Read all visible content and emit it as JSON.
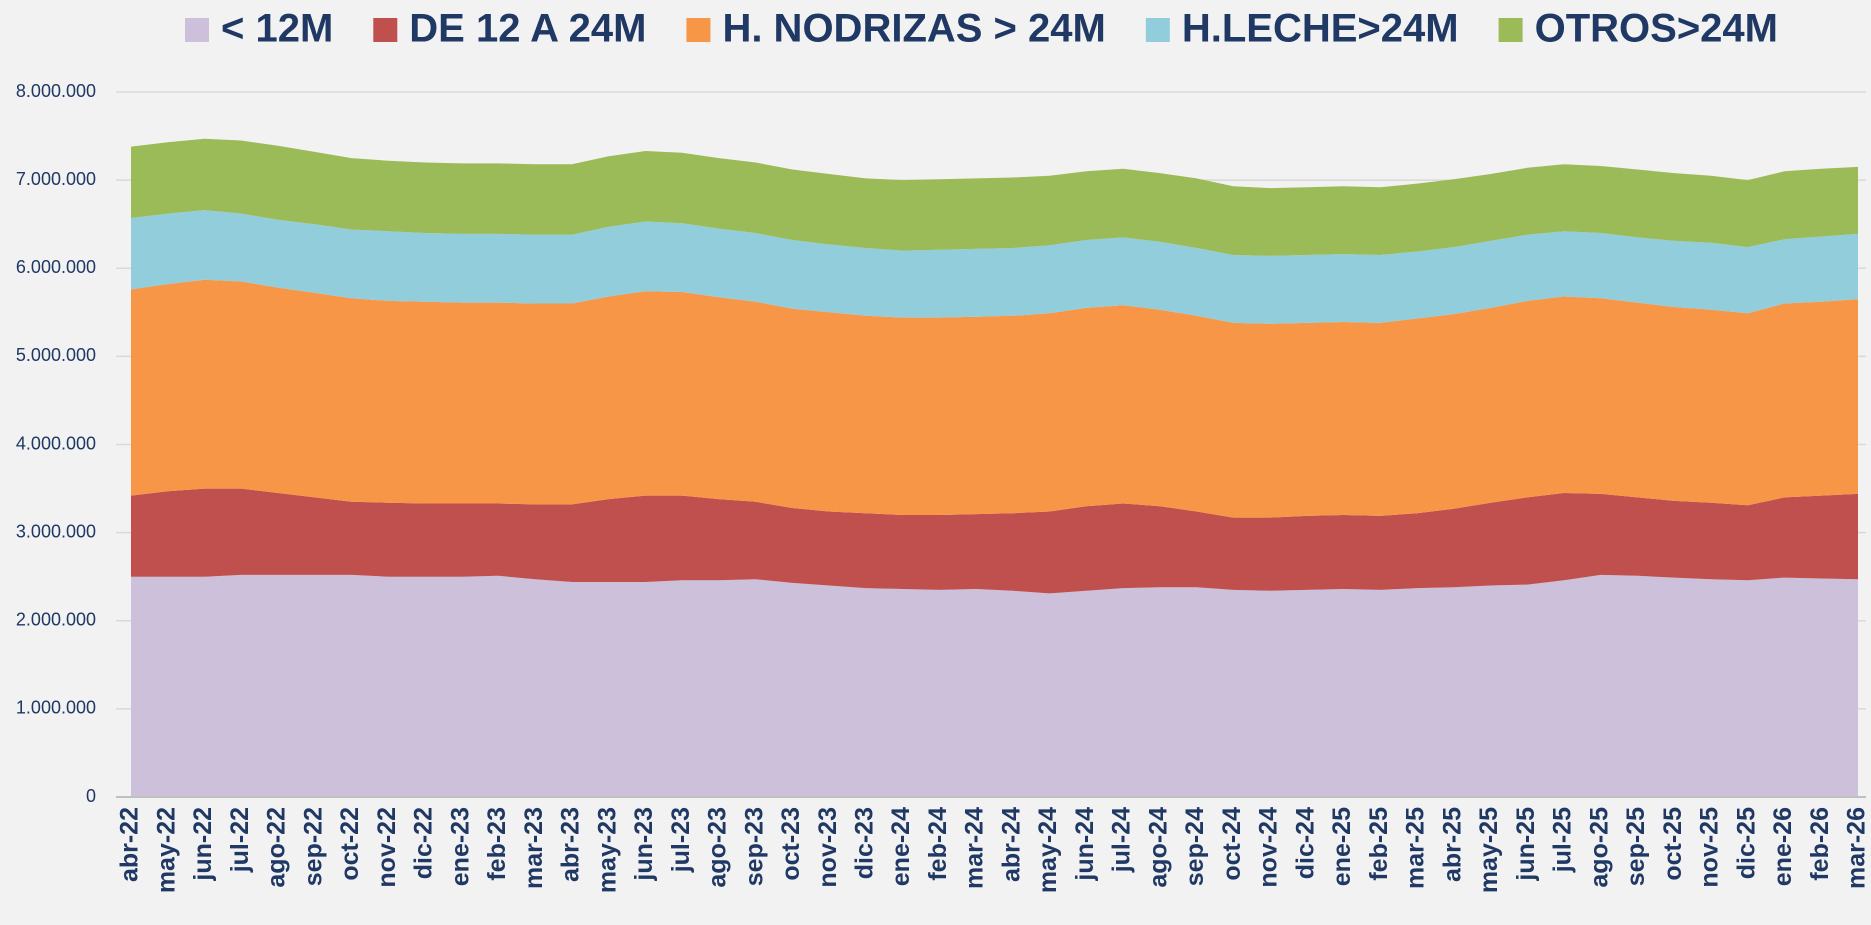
{
  "chart_data": {
    "type": "stacked_area",
    "categories": [
      "abr-22",
      "may-22",
      "jun-22",
      "jul-22",
      "ago-22",
      "sep-22",
      "oct-22",
      "nov-22",
      "dic-22",
      "ene-23",
      "feb-23",
      "mar-23",
      "abr-23",
      "may-23",
      "jun-23",
      "jul-23",
      "ago-23",
      "sep-23",
      "oct-23",
      "nov-23",
      "dic-23",
      "ene-24",
      "feb-24",
      "mar-24",
      "abr-24",
      "may-24",
      "jun-24",
      "jul-24",
      "ago-24",
      "sep-24",
      "oct-24",
      "nov-24",
      "dic-24",
      "ene-25",
      "feb-25",
      "mar-25",
      "abr-25",
      "may-25",
      "jun-25",
      "jul-25",
      "ago-25",
      "sep-25",
      "oct-25",
      "nov-25",
      "dic-25",
      "ene-26",
      "feb-26",
      "mar-26"
    ],
    "series": [
      {
        "name": "< 12M",
        "color": "#ccc0da",
        "values": [
          2500000,
          2500000,
          2500000,
          2520000,
          2520000,
          2520000,
          2520000,
          2500000,
          2500000,
          2500000,
          2510000,
          2470000,
          2440000,
          2440000,
          2440000,
          2460000,
          2460000,
          2470000,
          2430000,
          2400000,
          2370000,
          2360000,
          2350000,
          2360000,
          2340000,
          2310000,
          2340000,
          2370000,
          2380000,
          2380000,
          2350000,
          2340000,
          2350000,
          2360000,
          2350000,
          2370000,
          2380000,
          2400000,
          2410000,
          2460000,
          2520000,
          2510000,
          2490000,
          2470000,
          2460000,
          2490000,
          2480000,
          2470000
        ]
      },
      {
        "name": "DE 12 A 24M",
        "color": "#c0504d",
        "values": [
          920000,
          970000,
          1000000,
          980000,
          930000,
          880000,
          830000,
          840000,
          830000,
          830000,
          820000,
          850000,
          880000,
          940000,
          980000,
          960000,
          920000,
          880000,
          850000,
          840000,
          850000,
          840000,
          850000,
          850000,
          880000,
          930000,
          960000,
          960000,
          920000,
          860000,
          820000,
          830000,
          840000,
          840000,
          840000,
          850000,
          890000,
          940000,
          990000,
          990000,
          920000,
          890000,
          870000,
          870000,
          850000,
          910000,
          940000,
          970000
        ]
      },
      {
        "name": "H. NODRIZAS > 24M",
        "color": "#f79646",
        "values": [
          2340000,
          2350000,
          2370000,
          2350000,
          2330000,
          2320000,
          2310000,
          2290000,
          2290000,
          2280000,
          2280000,
          2280000,
          2280000,
          2300000,
          2320000,
          2310000,
          2290000,
          2270000,
          2260000,
          2260000,
          2240000,
          2240000,
          2240000,
          2240000,
          2240000,
          2250000,
          2250000,
          2250000,
          2230000,
          2220000,
          2210000,
          2200000,
          2190000,
          2190000,
          2190000,
          2210000,
          2210000,
          2210000,
          2230000,
          2230000,
          2220000,
          2210000,
          2200000,
          2190000,
          2180000,
          2200000,
          2200000,
          2210000
        ]
      },
      {
        "name": "H.LECHE>24M",
        "color": "#92cddc",
        "values": [
          810000,
          800000,
          790000,
          770000,
          770000,
          780000,
          780000,
          790000,
          780000,
          780000,
          780000,
          780000,
          780000,
          790000,
          790000,
          780000,
          780000,
          780000,
          780000,
          770000,
          770000,
          760000,
          770000,
          770000,
          770000,
          770000,
          770000,
          770000,
          770000,
          770000,
          770000,
          770000,
          770000,
          770000,
          770000,
          760000,
          760000,
          760000,
          750000,
          740000,
          740000,
          740000,
          750000,
          760000,
          750000,
          730000,
          740000,
          740000
        ]
      },
      {
        "name": "OTROS>24M",
        "color": "#9bbb59",
        "values": [
          810000,
          810000,
          810000,
          830000,
          840000,
          820000,
          810000,
          800000,
          800000,
          800000,
          800000,
          800000,
          800000,
          800000,
          800000,
          800000,
          800000,
          800000,
          800000,
          800000,
          790000,
          800000,
          800000,
          800000,
          800000,
          790000,
          780000,
          780000,
          780000,
          790000,
          780000,
          770000,
          770000,
          770000,
          770000,
          770000,
          770000,
          760000,
          760000,
          760000,
          760000,
          770000,
          770000,
          760000,
          760000,
          770000,
          770000,
          760000
        ]
      }
    ],
    "ylim": [
      0,
      8000000
    ],
    "yticks": [
      0,
      {
        "value": 1000000,
        "label": "1.000.000"
      },
      {
        "value": 2000000,
        "label": "2.000.000"
      },
      {
        "value": 3000000,
        "label": "3.000.000"
      },
      {
        "value": 4000000,
        "label": "4.000.000"
      },
      {
        "value": 5000000,
        "label": "5.000.000"
      },
      {
        "value": 6000000,
        "label": "6.000.000"
      },
      {
        "value": 7000000,
        "label": "7.000.000"
      },
      {
        "value": 8000000,
        "label": "8.000.000"
      }
    ],
    "grid": true,
    "legend": "top"
  }
}
